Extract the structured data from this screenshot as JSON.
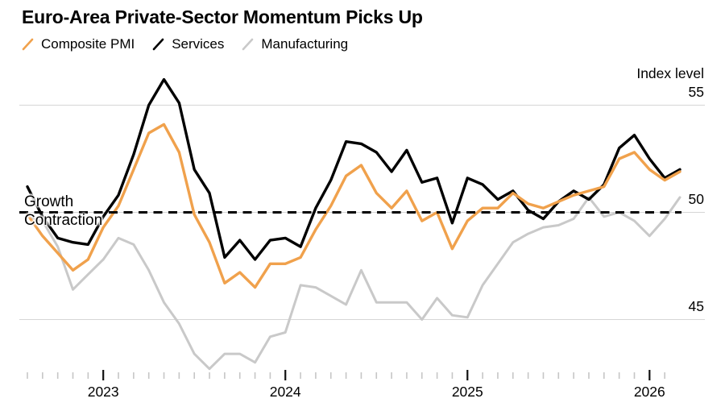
{
  "title": "Euro-Area Private-Sector Momentum Picks Up",
  "axis": {
    "y_title": "Index level",
    "y_ticks": [
      "55",
      "50",
      "45"
    ],
    "x_year_labels": [
      "2023",
      "2024",
      "2025",
      "2026"
    ]
  },
  "annotations": {
    "growth": "Growth",
    "contraction": "Contraction"
  },
  "colors": {
    "composite": "#F0A14C",
    "services": "#000000",
    "manufacturing": "#C9C9C9",
    "gridline": "#D6D6D6",
    "minor_tick": "#C6C6C6",
    "year_tick": "#111111",
    "threshold": "#000000",
    "background": "#FFFFFF"
  },
  "chart_data": {
    "type": "line",
    "title": "Euro-Area Private-Sector Momentum Picks Up",
    "y_axis_title": "Index level",
    "y_tick_values": [
      55,
      50,
      45
    ],
    "ylim": [
      41.5,
      57.5
    ],
    "x_range": [
      "2022-07",
      "2026-02"
    ],
    "threshold": {
      "value": 50,
      "above_label": "Growth",
      "below_label": "Contraction",
      "style": "dashed"
    },
    "legend_position": "top",
    "grid": "horizontal",
    "x": [
      "2022-07",
      "2022-08",
      "2022-09",
      "2022-10",
      "2022-11",
      "2022-12",
      "2023-01",
      "2023-02",
      "2023-03",
      "2023-04",
      "2023-05",
      "2023-06",
      "2023-07",
      "2023-08",
      "2023-09",
      "2023-10",
      "2023-11",
      "2023-12",
      "2024-01",
      "2024-02",
      "2024-03",
      "2024-04",
      "2024-05",
      "2024-06",
      "2024-07",
      "2024-08",
      "2024-09",
      "2024-10",
      "2024-11",
      "2024-12",
      "2025-01",
      "2025-02",
      "2025-03",
      "2025-04",
      "2025-05",
      "2025-06",
      "2025-07",
      "2025-08",
      "2025-09",
      "2025-10",
      "2025-11",
      "2025-12",
      "2026-01",
      "2026-02"
    ],
    "series": [
      {
        "name": "Composite PMI",
        "color": "#F0A14C",
        "values": [
          49.9,
          48.9,
          48.1,
          47.3,
          47.8,
          49.3,
          50.3,
          52.0,
          53.7,
          54.1,
          52.8,
          49.9,
          48.6,
          46.7,
          47.2,
          46.5,
          47.6,
          47.6,
          47.9,
          49.2,
          50.3,
          51.7,
          52.2,
          50.9,
          50.2,
          51.0,
          49.6,
          50.0,
          48.3,
          49.6,
          50.2,
          50.2,
          50.9,
          50.4,
          50.2,
          50.5,
          50.8,
          51.0,
          51.2,
          52.5,
          52.8,
          52.0,
          51.5,
          51.9
        ]
      },
      {
        "name": "Services",
        "color": "#000000",
        "values": [
          51.2,
          49.8,
          48.8,
          48.6,
          48.5,
          49.8,
          50.8,
          52.7,
          55.0,
          56.2,
          55.1,
          52.0,
          50.9,
          47.9,
          48.7,
          47.8,
          48.7,
          48.8,
          48.4,
          50.2,
          51.5,
          53.3,
          53.2,
          52.8,
          51.9,
          52.9,
          51.4,
          51.6,
          49.5,
          51.6,
          51.3,
          50.6,
          51.0,
          50.1,
          49.7,
          50.5,
          51.0,
          50.6,
          51.3,
          53.0,
          53.6,
          52.5,
          51.6,
          52.0
        ]
      },
      {
        "name": "Manufacturing",
        "color": "#C9C9C9",
        "values": [
          49.8,
          49.6,
          48.4,
          46.4,
          47.1,
          47.8,
          48.8,
          48.5,
          47.3,
          45.8,
          44.8,
          43.4,
          42.7,
          43.4,
          43.4,
          43.0,
          44.2,
          44.4,
          46.6,
          46.5,
          46.1,
          45.7,
          47.3,
          45.8,
          45.8,
          45.8,
          45.0,
          46.0,
          45.2,
          45.1,
          46.6,
          47.6,
          48.6,
          49.0,
          49.3,
          49.4,
          49.7,
          50.7,
          49.8,
          50.0,
          49.6,
          48.9,
          49.7,
          50.7
        ]
      }
    ]
  }
}
